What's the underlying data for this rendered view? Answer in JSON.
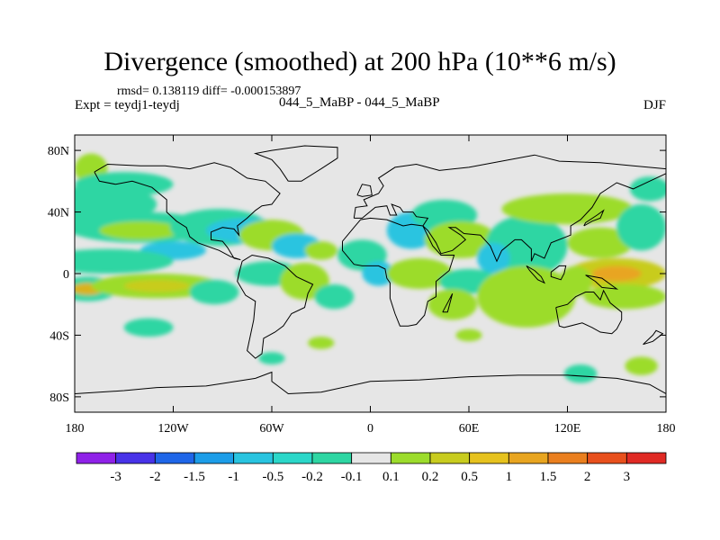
{
  "header": {
    "title": "Divergence (smoothed) at 200 hPa (10**6 m/s)",
    "stats": "rmsd= 0.138119 diff= -0.000153897",
    "experiment": "Expt = teydj1-teydj",
    "case_label": "044_5_MaBP - 044_5_MaBP",
    "season": "DJF"
  },
  "map": {
    "lon_range": [
      -180,
      180
    ],
    "lat_range": [
      -90,
      90
    ],
    "lon_ticks": [
      {
        "value": -180,
        "label": "180"
      },
      {
        "value": -120,
        "label": "120W"
      },
      {
        "value": -60,
        "label": "60W"
      },
      {
        "value": 0,
        "label": "0"
      },
      {
        "value": 60,
        "label": "60E"
      },
      {
        "value": 120,
        "label": "120E"
      },
      {
        "value": 180,
        "label": "180"
      }
    ],
    "lat_ticks": [
      {
        "value": 80,
        "label": "80N"
      },
      {
        "value": 40,
        "label": "40N"
      },
      {
        "value": 0,
        "label": "0"
      },
      {
        "value": -40,
        "label": "40S"
      },
      {
        "value": -80,
        "label": "80S"
      }
    ],
    "background_color": "#e6e6e6",
    "fields": [
      {
        "lon": -170,
        "lat": 68,
        "w": 10,
        "h": 10,
        "color": "#9cdc2c"
      },
      {
        "lon": -150,
        "lat": 58,
        "w": 30,
        "h": 8,
        "color": "#2ed6a3"
      },
      {
        "lon": -165,
        "lat": 45,
        "w": 35,
        "h": 12,
        "color": "#2ed6a3"
      },
      {
        "lon": -140,
        "lat": 30,
        "w": 45,
        "h": 10,
        "color": "#2ed6a3"
      },
      {
        "lon": -140,
        "lat": 28,
        "w": 25,
        "h": 6,
        "color": "#9cdc2c"
      },
      {
        "lon": -120,
        "lat": 15,
        "w": 20,
        "h": 6,
        "color": "#29c4e0"
      },
      {
        "lon": -160,
        "lat": 8,
        "w": 40,
        "h": 8,
        "color": "#2ed6a3"
      },
      {
        "lon": -172,
        "lat": -10,
        "w": 18,
        "h": 8,
        "color": "#2ed6a3"
      },
      {
        "lon": -172,
        "lat": -10,
        "w": 10,
        "h": 4,
        "color": "#d9b21f"
      },
      {
        "lon": -130,
        "lat": -8,
        "w": 40,
        "h": 8,
        "color": "#9cdc2c"
      },
      {
        "lon": -130,
        "lat": -8,
        "w": 20,
        "h": 4,
        "color": "#c8cc1f"
      },
      {
        "lon": -95,
        "lat": -12,
        "w": 15,
        "h": 8,
        "color": "#2ed6a3"
      },
      {
        "lon": -135,
        "lat": -35,
        "w": 15,
        "h": 6,
        "color": "#2ed6a3"
      },
      {
        "lon": -92,
        "lat": 30,
        "w": 30,
        "h": 12,
        "color": "#2ed6a3"
      },
      {
        "lon": -75,
        "lat": 28,
        "w": 25,
        "h": 8,
        "color": "#29c4e0"
      },
      {
        "lon": -60,
        "lat": 25,
        "w": 20,
        "h": 10,
        "color": "#9cdc2c"
      },
      {
        "lon": -45,
        "lat": 18,
        "w": 15,
        "h": 8,
        "color": "#29c4e0"
      },
      {
        "lon": -30,
        "lat": 15,
        "w": 10,
        "h": 6,
        "color": "#9cdc2c"
      },
      {
        "lon": -62,
        "lat": 0,
        "w": 20,
        "h": 8,
        "color": "#2ed6a3"
      },
      {
        "lon": -40,
        "lat": -5,
        "w": 15,
        "h": 12,
        "color": "#9cdc2c"
      },
      {
        "lon": -22,
        "lat": -15,
        "w": 12,
        "h": 8,
        "color": "#2ed6a3"
      },
      {
        "lon": -60,
        "lat": -55,
        "w": 8,
        "h": 4,
        "color": "#2ed6a3"
      },
      {
        "lon": -30,
        "lat": -45,
        "w": 8,
        "h": 4,
        "color": "#9cdc2c"
      },
      {
        "lon": -5,
        "lat": 12,
        "w": 15,
        "h": 10,
        "color": "#2ed6a3"
      },
      {
        "lon": 5,
        "lat": 0,
        "w": 10,
        "h": 8,
        "color": "#29c4e0"
      },
      {
        "lon": 30,
        "lat": 0,
        "w": 20,
        "h": 10,
        "color": "#9cdc2c"
      },
      {
        "lon": 25,
        "lat": 28,
        "w": 15,
        "h": 12,
        "color": "#29c4e0"
      },
      {
        "lon": 45,
        "lat": 38,
        "w": 20,
        "h": 10,
        "color": "#2ed6a3"
      },
      {
        "lon": 55,
        "lat": 22,
        "w": 22,
        "h": 12,
        "color": "#9cdc2c"
      },
      {
        "lon": 95,
        "lat": 18,
        "w": 25,
        "h": 20,
        "color": "#2ed6a3"
      },
      {
        "lon": 75,
        "lat": 10,
        "w": 10,
        "h": 10,
        "color": "#29c4e0"
      },
      {
        "lon": 60,
        "lat": -5,
        "w": 18,
        "h": 8,
        "color": "#2ed6a3"
      },
      {
        "lon": 50,
        "lat": -20,
        "w": 15,
        "h": 10,
        "color": "#9cdc2c"
      },
      {
        "lon": 95,
        "lat": -15,
        "w": 30,
        "h": 20,
        "color": "#9cdc2c"
      },
      {
        "lon": 120,
        "lat": 42,
        "w": 40,
        "h": 10,
        "color": "#9cdc2c"
      },
      {
        "lon": 140,
        "lat": 20,
        "w": 20,
        "h": 10,
        "color": "#9cdc2c"
      },
      {
        "lon": 150,
        "lat": 0,
        "w": 30,
        "h": 10,
        "color": "#c8cc1f"
      },
      {
        "lon": 150,
        "lat": 0,
        "w": 15,
        "h": 5,
        "color": "#e8a520"
      },
      {
        "lon": 155,
        "lat": -15,
        "w": 25,
        "h": 8,
        "color": "#9cdc2c"
      },
      {
        "lon": 125,
        "lat": -5,
        "w": 10,
        "h": 10,
        "color": "#9cdc2c"
      },
      {
        "lon": 165,
        "lat": 30,
        "w": 15,
        "h": 15,
        "color": "#2ed6a3"
      },
      {
        "lon": 170,
        "lat": 55,
        "w": 12,
        "h": 8,
        "color": "#2ed6a3"
      },
      {
        "lon": 128,
        "lat": -65,
        "w": 10,
        "h": 6,
        "color": "#2ed6a3"
      },
      {
        "lon": 165,
        "lat": -60,
        "w": 10,
        "h": 6,
        "color": "#9cdc2c"
      },
      {
        "lon": 60,
        "lat": -40,
        "w": 8,
        "h": 4,
        "color": "#9cdc2c"
      }
    ],
    "coastlines": [
      [
        [
          -168,
          66
        ],
        [
          -160,
          71
        ],
        [
          -140,
          70
        ],
        [
          -125,
          70
        ],
        [
          -110,
          68
        ],
        [
          -95,
          72
        ],
        [
          -85,
          69
        ],
        [
          -75,
          62
        ],
        [
          -64,
          60
        ],
        [
          -55,
          52
        ],
        [
          -60,
          45
        ],
        [
          -66,
          44
        ],
        [
          -70,
          41
        ],
        [
          -75,
          36
        ],
        [
          -81,
          31
        ],
        [
          -80,
          25
        ],
        [
          -83,
          29
        ],
        [
          -90,
          30
        ],
        [
          -97,
          27
        ],
        [
          -97,
          22
        ],
        [
          -90,
          21
        ],
        [
          -87,
          17
        ],
        [
          -83,
          10
        ],
        [
          -79,
          9
        ],
        [
          -85,
          11
        ],
        [
          -92,
          15
        ],
        [
          -105,
          20
        ],
        [
          -110,
          24
        ],
        [
          -112,
          30
        ],
        [
          -118,
          34
        ],
        [
          -124,
          40
        ],
        [
          -124,
          48
        ],
        [
          -133,
          56
        ],
        [
          -145,
          60
        ],
        [
          -155,
          58
        ],
        [
          -165,
          60
        ],
        [
          -168,
          66
        ]
      ],
      [
        [
          -78,
          8
        ],
        [
          -72,
          12
        ],
        [
          -62,
          10
        ],
        [
          -52,
          5
        ],
        [
          -45,
          -2
        ],
        [
          -35,
          -7
        ],
        [
          -38,
          -13
        ],
        [
          -40,
          -22
        ],
        [
          -48,
          -26
        ],
        [
          -53,
          -34
        ],
        [
          -58,
          -38
        ],
        [
          -65,
          -42
        ],
        [
          -66,
          -52
        ],
        [
          -70,
          -55
        ],
        [
          -75,
          -50
        ],
        [
          -73,
          -40
        ],
        [
          -71,
          -30
        ],
        [
          -70,
          -18
        ],
        [
          -76,
          -14
        ],
        [
          -81,
          -5
        ],
        [
          -80,
          0
        ],
        [
          -78,
          8
        ]
      ],
      [
        [
          -50,
          60
        ],
        [
          -42,
          60
        ],
        [
          -30,
          68
        ],
        [
          -20,
          75
        ],
        [
          -20,
          82
        ],
        [
          -40,
          83
        ],
        [
          -60,
          80
        ],
        [
          -70,
          78
        ],
        [
          -60,
          74
        ],
        [
          -55,
          68
        ],
        [
          -50,
          60
        ]
      ],
      [
        [
          -10,
          36
        ],
        [
          -9,
          43
        ],
        [
          -2,
          44
        ],
        [
          -4,
          48
        ],
        [
          5,
          52
        ],
        [
          8,
          57
        ],
        [
          5,
          62
        ],
        [
          15,
          69
        ],
        [
          28,
          71
        ],
        [
          42,
          67
        ],
        [
          60,
          69
        ],
        [
          75,
          72
        ],
        [
          100,
          77
        ],
        [
          115,
          73
        ],
        [
          140,
          72
        ],
        [
          160,
          70
        ],
        [
          180,
          68
        ],
        [
          180,
          65
        ],
        [
          170,
          60
        ],
        [
          160,
          55
        ],
        [
          150,
          59
        ],
        [
          140,
          52
        ],
        [
          135,
          43
        ],
        [
          128,
          35
        ],
        [
          122,
          31
        ],
        [
          122,
          25
        ],
        [
          110,
          20
        ],
        [
          106,
          10
        ],
        [
          100,
          13
        ],
        [
          98,
          8
        ],
        [
          98,
          16
        ],
        [
          92,
          22
        ],
        [
          88,
          22
        ],
        [
          80,
          15
        ],
        [
          77,
          8
        ],
        [
          73,
          18
        ],
        [
          67,
          25
        ],
        [
          57,
          26
        ],
        [
          52,
          30
        ],
        [
          48,
          30
        ],
        [
          55,
          25
        ],
        [
          58,
          22
        ],
        [
          50,
          15
        ],
        [
          43,
          13
        ],
        [
          40,
          20
        ],
        [
          35,
          28
        ],
        [
          32,
          31
        ],
        [
          35,
          36
        ],
        [
          28,
          37
        ],
        [
          26,
          40
        ],
        [
          20,
          40
        ],
        [
          18,
          43
        ],
        [
          13,
          45
        ],
        [
          16,
          38
        ],
        [
          12,
          38
        ],
        [
          10,
          44
        ],
        [
          3,
          43
        ],
        [
          -5,
          36
        ],
        [
          -10,
          36
        ]
      ],
      [
        [
          -17,
          21
        ],
        [
          -17,
          15
        ],
        [
          -10,
          6
        ],
        [
          -5,
          5
        ],
        [
          5,
          5
        ],
        [
          9,
          3
        ],
        [
          10,
          -3
        ],
        [
          12,
          -6
        ],
        [
          12,
          -16
        ],
        [
          15,
          -26
        ],
        [
          18,
          -34
        ],
        [
          23,
          -34
        ],
        [
          28,
          -33
        ],
        [
          33,
          -27
        ],
        [
          35,
          -18
        ],
        [
          40,
          -15
        ],
        [
          40,
          -5
        ],
        [
          48,
          2
        ],
        [
          51,
          12
        ],
        [
          43,
          12
        ],
        [
          38,
          18
        ],
        [
          32,
          31
        ],
        [
          25,
          32
        ],
        [
          20,
          31
        ],
        [
          10,
          35
        ],
        [
          0,
          36
        ],
        [
          -6,
          35
        ],
        [
          -10,
          30
        ],
        [
          -17,
          21
        ]
      ],
      [
        [
          113,
          -22
        ],
        [
          115,
          -34
        ],
        [
          118,
          -35
        ],
        [
          129,
          -32
        ],
        [
          135,
          -35
        ],
        [
          140,
          -38
        ],
        [
          147,
          -39
        ],
        [
          150,
          -36
        ],
        [
          153,
          -30
        ],
        [
          153,
          -25
        ],
        [
          146,
          -19
        ],
        [
          142,
          -11
        ],
        [
          140,
          -17
        ],
        [
          136,
          -12
        ],
        [
          131,
          -12
        ],
        [
          125,
          -15
        ],
        [
          120,
          -20
        ],
        [
          113,
          -22
        ]
      ],
      [
        [
          -180,
          -78
        ],
        [
          -150,
          -76
        ],
        [
          -130,
          -74
        ],
        [
          -100,
          -73
        ],
        [
          -70,
          -68
        ],
        [
          -60,
          -64
        ],
        [
          -60,
          -70
        ],
        [
          -50,
          -78
        ],
        [
          -30,
          -77
        ],
        [
          0,
          -70
        ],
        [
          30,
          -69
        ],
        [
          60,
          -67
        ],
        [
          90,
          -66
        ],
        [
          120,
          -66
        ],
        [
          150,
          -68
        ],
        [
          170,
          -72
        ],
        [
          180,
          -78
        ]
      ],
      [
        [
          95,
          5
        ],
        [
          100,
          2
        ],
        [
          104,
          -2
        ],
        [
          106,
          -6
        ],
        [
          102,
          -4
        ],
        [
          97,
          2
        ],
        [
          95,
          5
        ]
      ],
      [
        [
          110,
          1
        ],
        [
          115,
          5
        ],
        [
          119,
          5
        ],
        [
          118,
          0
        ],
        [
          116,
          -4
        ],
        [
          110,
          -2
        ],
        [
          110,
          1
        ]
      ],
      [
        [
          131,
          -1
        ],
        [
          141,
          -3
        ],
        [
          150,
          -10
        ],
        [
          141,
          -9
        ],
        [
          137,
          -5
        ],
        [
          131,
          -1
        ]
      ],
      [
        [
          -8,
          51
        ],
        [
          -5,
          58
        ],
        [
          0,
          57
        ],
        [
          1,
          51
        ],
        [
          -5,
          50
        ],
        [
          -8,
          51
        ]
      ],
      [
        [
          130,
          31
        ],
        [
          135,
          34
        ],
        [
          140,
          36
        ],
        [
          142,
          41
        ],
        [
          138,
          38
        ],
        [
          131,
          33
        ],
        [
          130,
          31
        ]
      ],
      [
        [
          166,
          -46
        ],
        [
          172,
          -40
        ],
        [
          174,
          -37
        ],
        [
          178,
          -39
        ],
        [
          172,
          -44
        ],
        [
          166,
          -46
        ]
      ],
      [
        [
          44,
          -25
        ],
        [
          49,
          -15
        ],
        [
          50,
          -13
        ],
        [
          47,
          -25
        ],
        [
          44,
          -25
        ]
      ]
    ]
  },
  "colorbar": {
    "colors": [
      "#8f21e8",
      "#4833e8",
      "#1f66e8",
      "#1c9de8",
      "#29c4e0",
      "#2bd7c9",
      "#2ed6a3",
      "#e6e6e6",
      "#9cdc2c",
      "#c8cc1f",
      "#e6c21e",
      "#e8a520",
      "#ea7f1f",
      "#e8501d",
      "#e02a24"
    ],
    "labels": [
      "-3",
      "-2",
      "-1.5",
      "-1",
      "-0.5",
      "-0.2",
      "-0.1",
      "0.1",
      "0.2",
      "0.5",
      "1",
      "1.5",
      "2",
      "3"
    ]
  }
}
